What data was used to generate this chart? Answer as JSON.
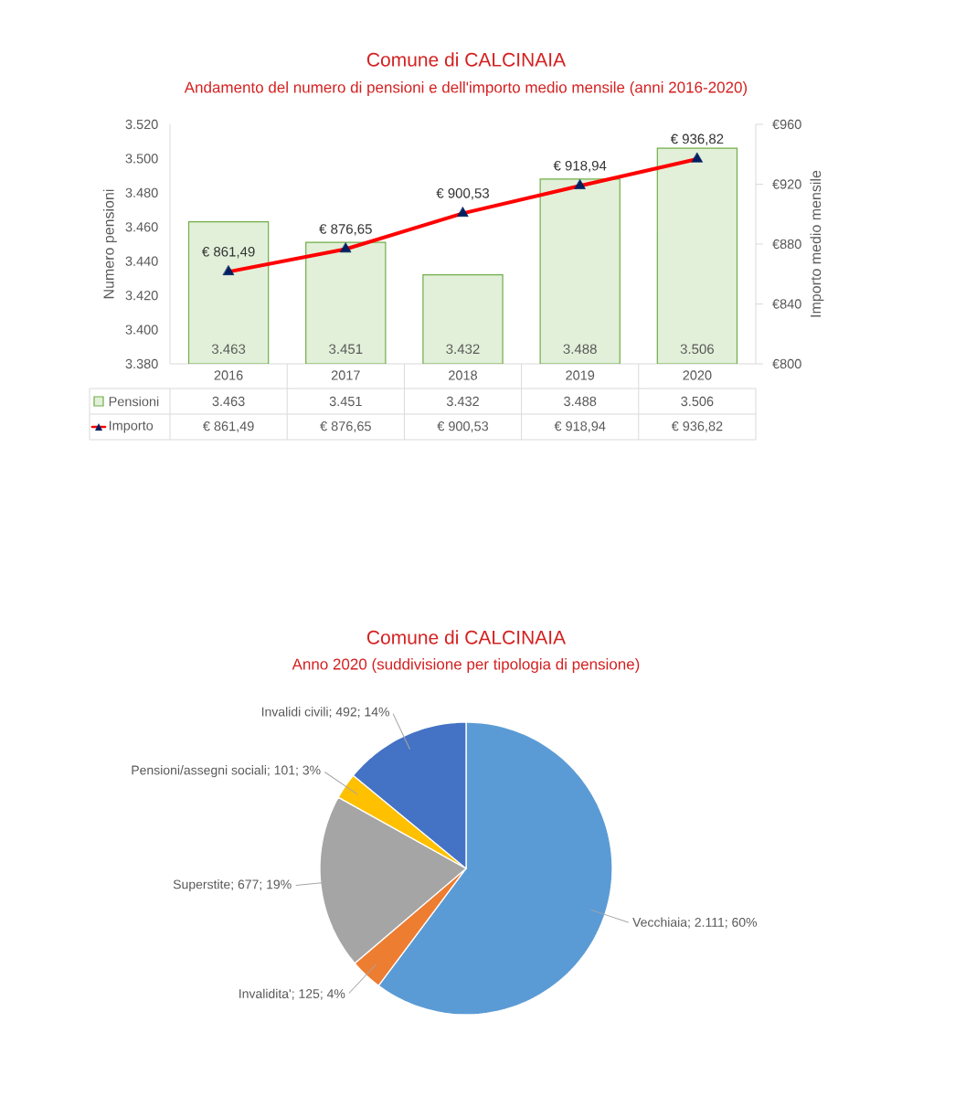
{
  "chart_data": [
    {
      "type": "bar",
      "title": "Comune di CALCINAIA",
      "subtitle": "Andamento del numero di pensioni e dell'importo medio mensile (anni 2016-2020)",
      "categories": [
        "2016",
        "2017",
        "2018",
        "2019",
        "2020"
      ],
      "ylabel": "Numero pensioni",
      "y2label": "Importo medio mensile",
      "legend": "bottom",
      "ylim": [
        3380,
        3520
      ],
      "yticks": [
        {
          "value": 3380,
          "label": "3.380"
        },
        {
          "value": 3400,
          "label": "3.400"
        },
        {
          "value": 3420,
          "label": "3.420"
        },
        {
          "value": 3440,
          "label": "3.440"
        },
        {
          "value": 3460,
          "label": "3.460"
        },
        {
          "value": 3480,
          "label": "3.480"
        },
        {
          "value": 3500,
          "label": "3.500"
        },
        {
          "value": 3520,
          "label": "3.520"
        }
      ],
      "y2lim": [
        800,
        960
      ],
      "y2ticks": [
        {
          "value": 800,
          "label": "€800"
        },
        {
          "value": 840,
          "label": "€840"
        },
        {
          "value": 880,
          "label": "€880"
        },
        {
          "value": 920,
          "label": "€920"
        },
        {
          "value": 960,
          "label": "€960"
        }
      ],
      "series": [
        {
          "name": "Pensioni",
          "type": "bar",
          "color": "#e2f0d9",
          "values": [
            3463,
            3451,
            3432,
            3488,
            3506
          ],
          "value_labels": [
            "3.463",
            "3.451",
            "3.432",
            "3.488",
            "3.506"
          ]
        },
        {
          "name": "Importo",
          "type": "line",
          "axis": "y2",
          "color": "#ff0000",
          "marker": "triangle",
          "values": [
            861.49,
            876.65,
            900.53,
            918.94,
            936.82
          ],
          "value_labels": [
            "€ 861,49",
            "€ 876,65",
            "€ 900,53",
            "€ 918,94",
            "€ 936,82"
          ]
        }
      ]
    },
    {
      "type": "pie",
      "title": "Comune di CALCINAIA",
      "subtitle": "Anno 2020 (suddivisione per tipologia di pensione)",
      "categories": [
        "Vecchiaia",
        "Invalidita'",
        "Superstite",
        "Pensioni/assegni sociali",
        "Invalidi civili"
      ],
      "values": [
        2111,
        125,
        677,
        101,
        492
      ],
      "colors": [
        "#5b9bd5",
        "#ed7d31",
        "#a5a5a5",
        "#ffc000",
        "#4472c4"
      ],
      "value_labels": [
        "; 2.111; 60%",
        "; 125; 4%",
        "; 677; 19%",
        "; 101; 3%",
        "; 492; 14%"
      ]
    }
  ]
}
